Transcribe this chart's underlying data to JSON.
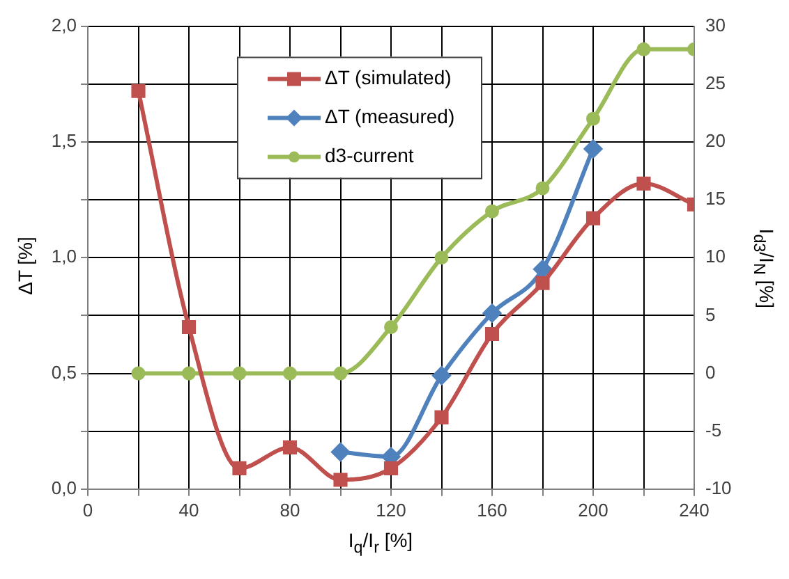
{
  "chart_data": {
    "type": "line",
    "xlabel": "I$_{q}$/I$_{r}$ [%]",
    "ylabel": "ΔT [%]",
    "y2label": "I$_{d3}$/I$_{N}$ [%]",
    "x": [
      20,
      40,
      60,
      80,
      100,
      120,
      140,
      160,
      180,
      200,
      220,
      240
    ],
    "series": [
      {
        "name": "ΔT (simulated)",
        "color": "#c0504d",
        "marker": "square",
        "values": [
          1.72,
          0.7,
          0.09,
          0.18,
          0.04,
          0.09,
          0.31,
          0.67,
          0.89,
          1.17,
          1.32,
          1.23
        ]
      },
      {
        "name": "ΔT (measured)",
        "color": "#4f81bd",
        "marker": "diamond",
        "values": [
          null,
          null,
          null,
          null,
          0.16,
          0.14,
          0.49,
          0.76,
          0.95,
          1.47,
          null,
          null
        ]
      },
      {
        "name": "d3-current",
        "color": "#9bbb59",
        "marker": "circle",
        "axis": "y2",
        "values": [
          0,
          0,
          0,
          0,
          0,
          4,
          10,
          14,
          16,
          22,
          28,
          28
        ]
      }
    ],
    "xlim": [
      0,
      240
    ],
    "xticks": [
      0,
      {
        "value": 20,
        "label": null
      },
      40,
      {
        "value": 60,
        "label": null
      },
      80,
      {
        "value": 100,
        "label": null
      },
      120,
      {
        "value": 140,
        "label": null
      },
      160,
      {
        "value": 180,
        "label": null
      },
      200,
      {
        "value": 220,
        "label": null
      },
      240
    ],
    "ylim": [
      0,
      2
    ],
    "yticks": [
      {
        "value": 0,
        "label": "0,0"
      },
      {
        "value": 0.25,
        "label": null
      },
      {
        "value": 0.5,
        "label": "0,5"
      },
      {
        "value": 0.75,
        "label": null
      },
      {
        "value": 1,
        "label": "1,0"
      },
      {
        "value": 1.25,
        "label": null
      },
      {
        "value": 1.5,
        "label": "1,5"
      },
      {
        "value": 1.75,
        "label": null
      },
      {
        "value": 2,
        "label": "2,0"
      }
    ],
    "y2lim": [
      -10,
      30
    ],
    "y2ticks": [
      -10,
      -5,
      0,
      5,
      10,
      15,
      20,
      25,
      30
    ],
    "grid": true,
    "legend": "top",
    "line_style": "solid"
  }
}
